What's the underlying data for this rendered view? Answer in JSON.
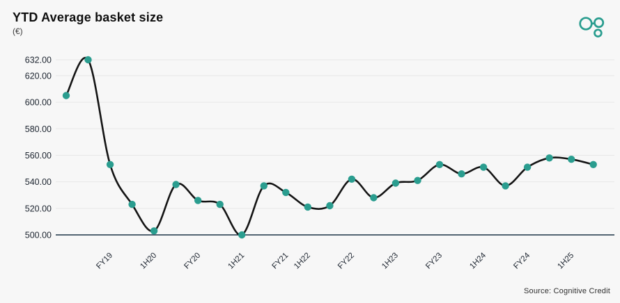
{
  "header": {
    "title": "YTD Average basket size",
    "subtitle": "(€)"
  },
  "source": "Source: Cognitive Credit",
  "colors": {
    "background": "#f7f7f7",
    "accent_teal": "#2a9d8f",
    "line": "#141414",
    "gridline": "#e7e7e7",
    "baseline": "#1c3347",
    "tick_text": "#1d2530"
  },
  "chart_data": {
    "type": "line",
    "title": "YTD Average basket size",
    "ylabel": "(€)",
    "ylim": [
      500,
      632
    ],
    "yticks": [
      632,
      620,
      600,
      580,
      560,
      540,
      520,
      500
    ],
    "ytick_decimals": 2,
    "grid": true,
    "legend": false,
    "smoothing": "spline",
    "n_points": 25,
    "values": [
      605,
      632,
      553,
      523,
      503,
      538,
      526,
      523,
      500,
      537,
      532,
      521,
      522,
      542,
      528,
      539,
      541,
      553,
      546,
      551,
      537,
      551,
      558,
      557,
      553
    ],
    "x_labels": [
      {
        "label": "FY19",
        "i": 2
      },
      {
        "label": "1H20",
        "i": 4
      },
      {
        "label": "FY20",
        "i": 6
      },
      {
        "label": "1H21",
        "i": 8
      },
      {
        "label": "FY21",
        "i": 10
      },
      {
        "label": "1H22",
        "i": 11
      },
      {
        "label": "FY22",
        "i": 13
      },
      {
        "label": "1H23",
        "i": 15
      },
      {
        "label": "FY23",
        "i": 17
      },
      {
        "label": "1H24",
        "i": 19
      },
      {
        "label": "FY24",
        "i": 21
      },
      {
        "label": "1H25",
        "i": 23
      }
    ],
    "marker_color": "#2a9d8f",
    "line_color": "#141414"
  }
}
